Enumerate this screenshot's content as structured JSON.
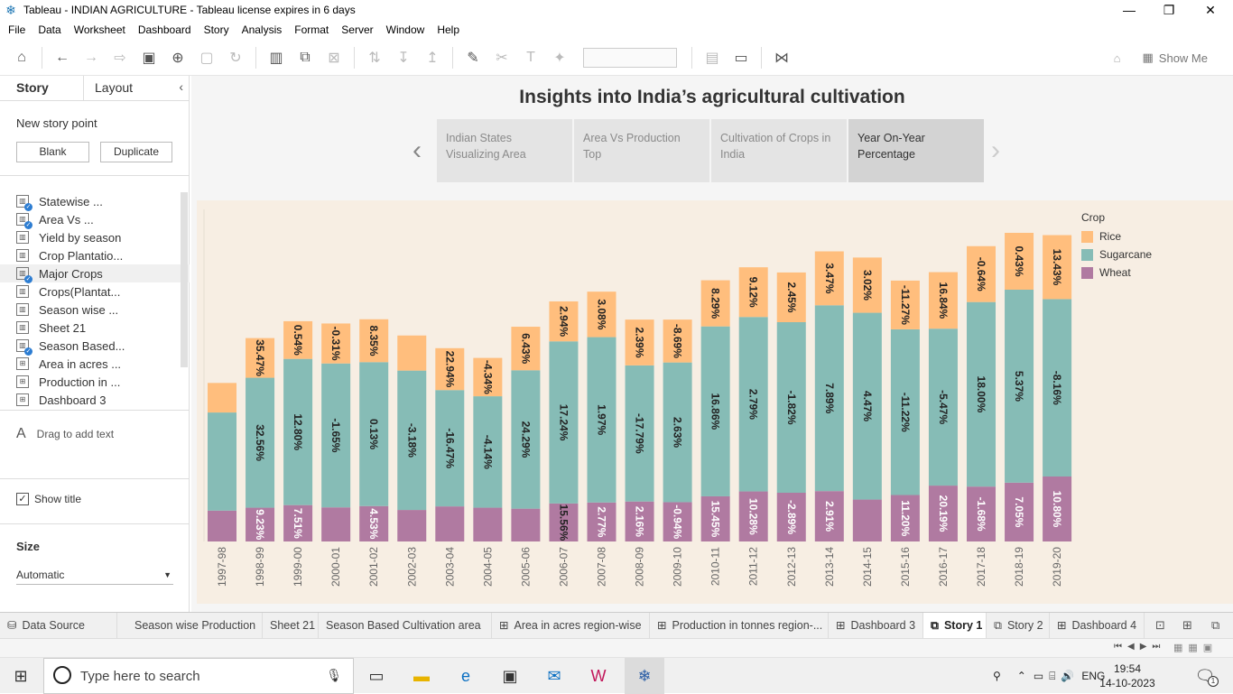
{
  "window": {
    "title": "Tableau - INDIAN AGRICULTURE - Tableau license expires in 6 days",
    "minimize": "—",
    "restore": "❐",
    "close": "✕"
  },
  "menu": [
    "File",
    "Data",
    "Worksheet",
    "Dashboard",
    "Story",
    "Analysis",
    "Format",
    "Server",
    "Window",
    "Help"
  ],
  "toolbar": {
    "show_me": "Show Me"
  },
  "sidebar": {
    "tab_story": "Story",
    "tab_layout": "Layout",
    "new_story_point": "New story point",
    "blank": "Blank",
    "duplicate": "Duplicate",
    "items": [
      {
        "label": "Statewise ...",
        "type": "sheet-check"
      },
      {
        "label": "Area Vs ...",
        "type": "sheet-check"
      },
      {
        "label": "Yield by season",
        "type": "sheet"
      },
      {
        "label": "Crop Plantatio...",
        "type": "sheet"
      },
      {
        "label": "Major  Crops",
        "type": "sheet-check"
      },
      {
        "label": "Crops(Plantat...",
        "type": "sheet"
      },
      {
        "label": "Season wise ...",
        "type": "sheet"
      },
      {
        "label": "Sheet 21",
        "type": "sheet"
      },
      {
        "label": "Season Based...",
        "type": "sheet-check"
      },
      {
        "label": "Area in acres ...",
        "type": "dashboard"
      },
      {
        "label": "Production in ...",
        "type": "dashboard"
      },
      {
        "label": "Dashboard 3",
        "type": "dashboard"
      }
    ],
    "drag_text": "Drag to add text",
    "show_title": "Show title",
    "size_label": "Size",
    "size_value": "Automatic"
  },
  "story": {
    "title": "Insights into India’s agricultural cultivation",
    "points": [
      {
        "line1": "Indian States",
        "line2": "Visualizing Area"
      },
      {
        "line1": "Area  Vs Production",
        "line2": "Top"
      },
      {
        "line1": "Cultivation of Crops in",
        "line2": "India"
      },
      {
        "line1": "Year On-Year",
        "line2": "Percentage"
      }
    ]
  },
  "chart_data": {
    "type": "bar",
    "stacked": true,
    "legend_title": "Crop",
    "legend_position": "top-right",
    "categories": [
      "1997-98",
      "1998-99",
      "1999-00",
      "2000-01",
      "2001-02",
      "2002-03",
      "2003-04",
      "2004-05",
      "2005-06",
      "2006-07",
      "2007-08",
      "2008-09",
      "2009-10",
      "2010-11",
      "2011-12",
      "2012-13",
      "2013-14",
      "2014-15",
      "2015-16",
      "2016-17",
      "2017-18",
      "2018-19",
      "2019-20"
    ],
    "series": [
      {
        "name": "Wheat",
        "color": "#b07aa1",
        "values": [
          9.5,
          10.4,
          11.2,
          10.5,
          10.9,
          9.7,
          10.8,
          10.4,
          10.1,
          11.7,
          12.0,
          12.3,
          12.1,
          13.9,
          15.4,
          15.0,
          15.5,
          12.9,
          14.3,
          17.2,
          16.9,
          18.1,
          20.0
        ],
        "labels": [
          "",
          "9.23%",
          "7.51%",
          "",
          "4.53%",
          "",
          "",
          "",
          "",
          "15.56%",
          "2.77%",
          "2.16%",
          "-0.94%",
          "15.45%",
          "10.28%",
          "-2.89%",
          "2.91%",
          "",
          "11.20%",
          "20.19%",
          "-1.68%",
          "7.05%",
          "10.80%"
        ]
      },
      {
        "name": "Sugarcane",
        "color": "#86bcb6",
        "values": [
          30.2,
          40.0,
          45.0,
          44.3,
          44.3,
          42.9,
          35.8,
          34.3,
          42.6,
          49.9,
          50.9,
          41.9,
          43.0,
          52.3,
          53.7,
          52.5,
          57.2,
          57.5,
          51.0,
          48.3,
          56.8,
          59.4,
          54.6
        ],
        "labels": [
          "",
          "32.56%",
          "12.80%",
          "-1.65%",
          "0.13%",
          "-3.18%",
          "-16.47%",
          "-4.14%",
          "24.29%",
          "17.24%",
          "1.97%",
          "-17.79%",
          "2.63%",
          "16.86%",
          "2.79%",
          "-1.82%",
          "7.89%",
          "4.47%",
          "-11.22%",
          "-5.47%",
          "18.00%",
          "5.37%",
          "-8.16%"
        ]
      },
      {
        "name": "Rice",
        "color": "#ffbe7d",
        "values": [
          9.1,
          12.2,
          11.6,
          12.3,
          13.2,
          10.8,
          12.9,
          11.8,
          13.4,
          12.3,
          14.0,
          14.1,
          13.2,
          14.2,
          15.3,
          15.3,
          16.6,
          17.0,
          15.0,
          17.4,
          17.2,
          17.5,
          19.7
        ],
        "labels": [
          "",
          "35.47%",
          "0.54%",
          "-0.31%",
          "8.35%",
          "",
          "22.94%",
          "-4.34%",
          "6.43%",
          "2.94%",
          "3.08%",
          "2.39%",
          "-8.69%",
          "8.29%",
          "9.12%",
          "2.45%",
          "3.47%",
          "3.02%",
          "-11.27%",
          "16.84%",
          "-0.64%",
          "0.43%",
          "13.43%"
        ]
      }
    ],
    "ylim": [
      0,
      100
    ]
  },
  "bottom_tabs": [
    {
      "label": "Data Source",
      "icon": "⛁"
    },
    {
      "label": "Season wise Production",
      "icon": ""
    },
    {
      "label": "Sheet 21",
      "icon": ""
    },
    {
      "label": "Season Based Cultivation area",
      "icon": ""
    },
    {
      "label": "Area in acres region-wise",
      "icon": "⊞"
    },
    {
      "label": "Production in tonnes region-...",
      "icon": "⊞"
    },
    {
      "label": "Dashboard 3",
      "icon": "⊞"
    },
    {
      "label": "Story 1",
      "icon": "⧉",
      "active": true
    },
    {
      "label": "Story 2",
      "icon": "⧉"
    },
    {
      "label": "Dashboard 4",
      "icon": "⊞"
    }
  ],
  "taskbar": {
    "search_placeholder": "Type here to search",
    "lang": "ENG",
    "time": "19:54",
    "date": "14-10-2023",
    "notif_count": "1"
  }
}
